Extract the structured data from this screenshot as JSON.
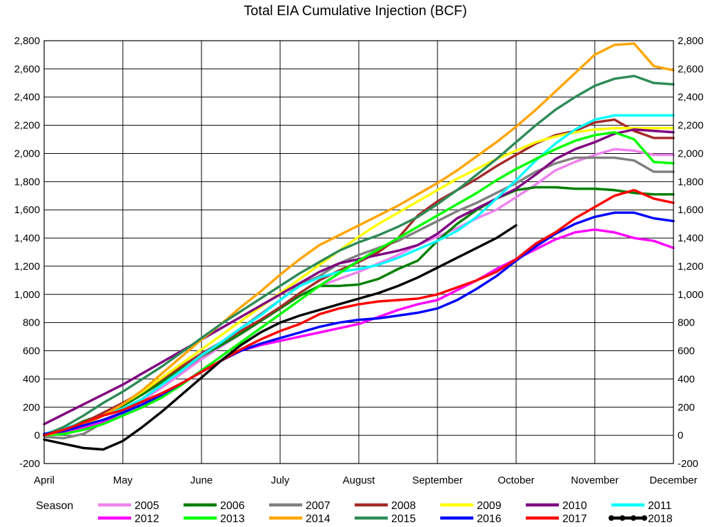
{
  "chart_data": {
    "type": "line",
    "title": "Total EIA Cumulative Injection (BCF)",
    "xlabel": "",
    "ylabel": "",
    "categories": [
      "April",
      "May",
      "June",
      "July",
      "August",
      "September",
      "October",
      "November",
      "December"
    ],
    "x": [
      0,
      0.25,
      0.5,
      0.75,
      1,
      1.25,
      1.5,
      1.75,
      2,
      2.25,
      2.5,
      2.75,
      3,
      3.25,
      3.5,
      3.75,
      4,
      4.25,
      4.5,
      4.75,
      5,
      5.25,
      5.5,
      5.75,
      6,
      6.25,
      6.5,
      6.75,
      7,
      7.25,
      7.5,
      7.75,
      8
    ],
    "ylim": [
      -200,
      2800
    ],
    "ytick_values": [
      -200,
      0,
      200,
      400,
      600,
      800,
      1000,
      1200,
      1400,
      1600,
      1800,
      2000,
      2200,
      2400,
      2600,
      2800
    ],
    "ytick_labels": [
      "-200",
      "0",
      "200",
      "400",
      "600",
      "800",
      "1,000",
      "1,200",
      "1,400",
      "1,600",
      "1,800",
      "2,000",
      "2,200",
      "2,400",
      "2,600",
      "2,800"
    ],
    "grid": true,
    "legend_title": "Season",
    "legend_position": "bottom",
    "series": [
      {
        "name": "2005",
        "color": "#ee82ee",
        "values": [
          0,
          15,
          60,
          110,
          170,
          250,
          340,
          440,
          540,
          630,
          720,
          810,
          900,
          990,
          1060,
          1110,
          1160,
          1220,
          1280,
          1350,
          1410,
          1470,
          1540,
          1600,
          1690,
          1780,
          1880,
          1940,
          1990,
          2030,
          2020,
          1990,
          1990
        ]
      },
      {
        "name": "2006",
        "color": "#008000",
        "values": [
          0,
          40,
          100,
          150,
          210,
          290,
          380,
          470,
          560,
          640,
          720,
          810,
          900,
          990,
          1060,
          1060,
          1070,
          1110,
          1180,
          1240,
          1380,
          1500,
          1600,
          1680,
          1740,
          1760,
          1760,
          1750,
          1750,
          1740,
          1720,
          1710,
          1710
        ]
      },
      {
        "name": "2007",
        "color": "#808080",
        "values": [
          -10,
          -20,
          10,
          90,
          170,
          260,
          360,
          460,
          560,
          660,
          760,
          860,
          960,
          1070,
          1130,
          1220,
          1280,
          1330,
          1380,
          1450,
          1520,
          1590,
          1650,
          1720,
          1790,
          1870,
          1930,
          1970,
          1970,
          1970,
          1950,
          1870,
          1870
        ]
      },
      {
        "name": "2008",
        "color": "#a52a2a",
        "values": [
          0,
          30,
          90,
          160,
          230,
          310,
          400,
          490,
          580,
          660,
          740,
          820,
          910,
          1010,
          1100,
          1170,
          1230,
          1300,
          1400,
          1560,
          1660,
          1740,
          1820,
          1910,
          1990,
          2070,
          2130,
          2160,
          2220,
          2240,
          2160,
          2110,
          2110
        ]
      },
      {
        "name": "2009",
        "color": "#ffff00",
        "values": [
          0,
          20,
          70,
          140,
          220,
          310,
          410,
          510,
          610,
          710,
          810,
          910,
          1010,
          1110,
          1210,
          1310,
          1410,
          1500,
          1580,
          1660,
          1740,
          1820,
          1890,
          1960,
          2020,
          2080,
          2120,
          2150,
          2170,
          2180,
          2180,
          2180,
          2180
        ]
      },
      {
        "name": "2010",
        "color": "#800080",
        "values": [
          80,
          150,
          220,
          290,
          360,
          440,
          520,
          600,
          680,
          760,
          840,
          920,
          1000,
          1080,
          1160,
          1220,
          1250,
          1280,
          1310,
          1350,
          1430,
          1540,
          1610,
          1680,
          1750,
          1850,
          1960,
          2030,
          2080,
          2140,
          2170,
          2160,
          2150
        ]
      },
      {
        "name": "2011",
        "color": "#00ffff",
        "values": [
          10,
          50,
          90,
          140,
          190,
          260,
          360,
          460,
          570,
          660,
          760,
          850,
          960,
          1060,
          1120,
          1160,
          1180,
          1210,
          1260,
          1320,
          1380,
          1450,
          1550,
          1680,
          1810,
          1950,
          2070,
          2170,
          2240,
          2270,
          2270,
          2270,
          2270
        ]
      },
      {
        "name": "2012",
        "color": "#ff00ff",
        "values": [
          0,
          20,
          50,
          90,
          140,
          200,
          280,
          370,
          450,
          530,
          600,
          640,
          670,
          700,
          730,
          760,
          790,
          840,
          890,
          930,
          960,
          1030,
          1100,
          1180,
          1250,
          1320,
          1390,
          1440,
          1460,
          1440,
          1400,
          1380,
          1330
        ]
      },
      {
        "name": "2013",
        "color": "#00ff00",
        "values": [
          0,
          10,
          40,
          80,
          140,
          200,
          270,
          360,
          460,
          560,
          660,
          760,
          860,
          960,
          1060,
          1150,
          1240,
          1320,
          1400,
          1480,
          1560,
          1640,
          1720,
          1810,
          1890,
          1960,
          2030,
          2090,
          2130,
          2150,
          2100,
          1940,
          1930
        ]
      },
      {
        "name": "2014",
        "color": "#ffa500",
        "values": [
          0,
          30,
          70,
          140,
          220,
          320,
          440,
          560,
          680,
          790,
          910,
          1020,
          1140,
          1250,
          1350,
          1420,
          1490,
          1560,
          1630,
          1710,
          1790,
          1880,
          1980,
          2080,
          2190,
          2310,
          2440,
          2570,
          2700,
          2770,
          2780,
          2620,
          2590
        ]
      },
      {
        "name": "2015",
        "color": "#2e8b57",
        "values": [
          0,
          60,
          140,
          230,
          310,
          400,
          490,
          590,
          690,
          790,
          880,
          970,
          1060,
          1150,
          1230,
          1310,
          1370,
          1420,
          1480,
          1550,
          1640,
          1740,
          1850,
          1960,
          2080,
          2200,
          2310,
          2400,
          2480,
          2530,
          2550,
          2500,
          2490
        ]
      },
      {
        "name": "2016",
        "color": "#0000ff",
        "values": [
          10,
          30,
          70,
          110,
          160,
          220,
          290,
          370,
          450,
          530,
          600,
          650,
          690,
          730,
          770,
          800,
          820,
          830,
          850,
          870,
          900,
          960,
          1040,
          1130,
          1240,
          1340,
          1430,
          1500,
          1550,
          1580,
          1580,
          1540,
          1520
        ]
      },
      {
        "name": "2017",
        "color": "#ff0000",
        "values": [
          0,
          40,
          90,
          140,
          180,
          240,
          300,
          370,
          450,
          530,
          610,
          680,
          740,
          790,
          860,
          900,
          930,
          950,
          960,
          970,
          1000,
          1050,
          1100,
          1160,
          1250,
          1360,
          1440,
          1540,
          1620,
          1700,
          1740,
          1680,
          1650
        ]
      },
      {
        "name": "2018",
        "color": "#000000",
        "values": [
          -30,
          -60,
          -90,
          -100,
          -40,
          60,
          170,
          290,
          410,
          530,
          640,
          730,
          800,
          850,
          890,
          930,
          970,
          1010,
          1060,
          1120,
          1190,
          1260,
          1330,
          1400,
          1490,
          null,
          null,
          null,
          null,
          null,
          null,
          null,
          null
        ]
      }
    ]
  }
}
